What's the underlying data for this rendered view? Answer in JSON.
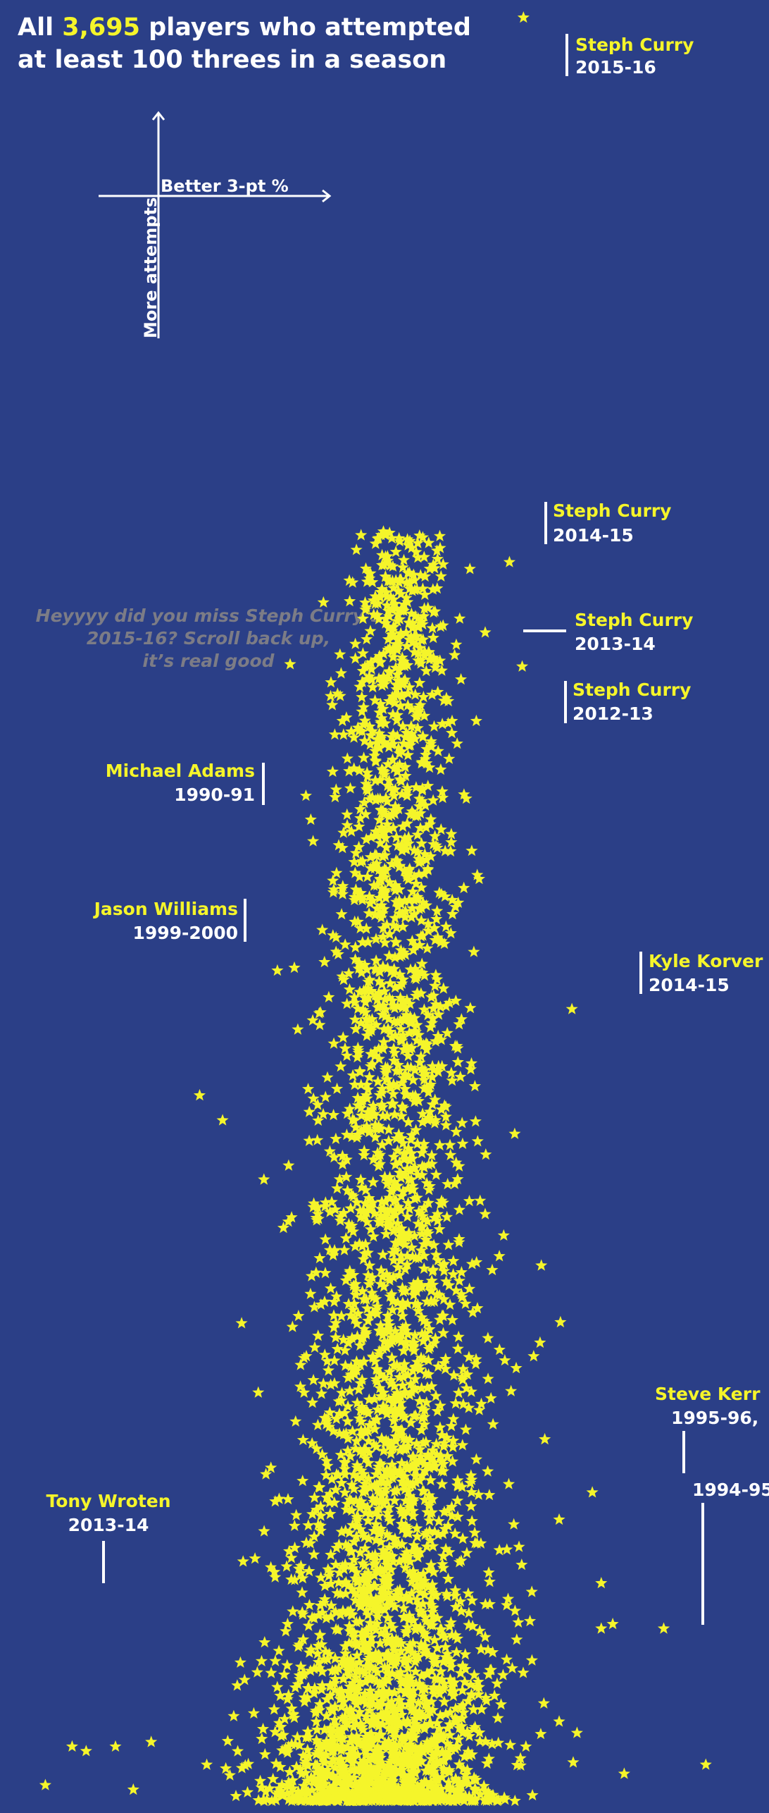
{
  "title": {
    "prefix": "All ",
    "count": "3,695",
    "line1_suffix": " players who attempted",
    "line2": "at least 100 threes in a season"
  },
  "legend": {
    "x_direction": "Better 3-pt %",
    "y_direction": "More attempts"
  },
  "note": {
    "line1": "Heyyyy did you miss Steph Curry’s",
    "line2": "2015-16? Scroll back up,",
    "line3": "it’s real good"
  },
  "colors": {
    "background": "#2b3f87",
    "marker": "#f5f52a",
    "text": "#ffffff",
    "note": "#7c7c86"
  },
  "annotations": [
    {
      "name": "Steph Curry",
      "season": "2015-16"
    },
    {
      "name": "Steph Curry",
      "season": "2014-15"
    },
    {
      "name": "Steph Curry",
      "season": "2013-14"
    },
    {
      "name": "Steph Curry",
      "season": "2012-13"
    },
    {
      "name": "Michael Adams",
      "season": "1990-91"
    },
    {
      "name": "Jason Williams",
      "season": "1999-2000"
    },
    {
      "name": "Kyle Korver",
      "season": "2014-15"
    },
    {
      "name": "Steve Kerr",
      "season": "1995-96,"
    },
    {
      "name": "",
      "season": "1994-95"
    },
    {
      "name": "Tony Wroten",
      "season": "2013-14"
    }
  ],
  "chart_data": {
    "type": "scatter",
    "marker": "star",
    "xlabel": "Better 3-pt %",
    "ylabel": "More attempts",
    "total_points": 3695,
    "x_domain": [
      0.06,
      0.63
    ],
    "y_domain": [
      100,
      886
    ],
    "highlighted": [
      {
        "label": "Steph Curry 2015-16",
        "x": 0.454,
        "y": 886
      },
      {
        "label": "Steph Curry 2014-15",
        "x": 0.443,
        "y": 646
      },
      {
        "label": "Steph Curry 2013-14",
        "x": 0.424,
        "y": 615
      },
      {
        "label": "Steph Curry 2012-13",
        "x": 0.453,
        "y": 600
      },
      {
        "label": "Michael Adams 1990-91",
        "x": 0.356,
        "y": 564
      },
      {
        "label": "Jason Williams 1999-2000",
        "x": 0.341,
        "y": 498
      },
      {
        "label": "Kyle Korver 2014-15",
        "x": 0.492,
        "y": 449
      },
      {
        "label": "Steve Kerr 1995-96",
        "x": 0.515,
        "y": 196
      },
      {
        "label": "Steve Kerr 1994-95",
        "x": 0.524,
        "y": 178
      },
      {
        "label": "Tony Wroten 2013-14",
        "x": 0.269,
        "y": 178
      }
    ],
    "sampled_points": [
      {
        "x": 0.363,
        "y": 656
      },
      {
        "x": 0.334,
        "y": 641
      },
      {
        "x": 0.391,
        "y": 645
      },
      {
        "x": 0.412,
        "y": 643
      },
      {
        "x": 0.32,
        "y": 637
      },
      {
        "x": 0.33,
        "y": 625
      },
      {
        "x": 0.346,
        "y": 621
      },
      {
        "x": 0.355,
        "y": 620
      },
      {
        "x": 0.331,
        "y": 612
      },
      {
        "x": 0.367,
        "y": 617
      },
      {
        "x": 0.348,
        "y": 612
      },
      {
        "x": 0.4,
        "y": 605
      },
      {
        "x": 0.271,
        "y": 601
      },
      {
        "x": 0.328,
        "y": 598
      },
      {
        "x": 0.311,
        "y": 597
      },
      {
        "x": 0.303,
        "y": 593
      },
      {
        "x": 0.304,
        "y": 583
      },
      {
        "x": 0.312,
        "y": 576
      },
      {
        "x": 0.398,
        "y": 576
      },
      {
        "x": 0.306,
        "y": 570
      },
      {
        "x": 0.36,
        "y": 566
      },
      {
        "x": 0.395,
        "y": 575
      },
      {
        "x": 0.417,
        "y": 576
      },
      {
        "x": 0.402,
        "y": 566
      },
      {
        "x": 0.289,
        "y": 523
      },
      {
        "x": 0.312,
        "y": 520
      },
      {
        "x": 0.346,
        "y": 498
      },
      {
        "x": 0.313,
        "y": 462
      },
      {
        "x": 0.277,
        "y": 440
      },
      {
        "x": 0.261,
        "y": 466
      },
      {
        "x": 0.2,
        "y": 411
      },
      {
        "x": 0.218,
        "y": 400
      },
      {
        "x": 0.246,
        "y": 280
      },
      {
        "x": 0.232,
        "y": 161
      },
      {
        "x": 0.1,
        "y": 124
      },
      {
        "x": 0.079,
        "y": 107
      },
      {
        "x": 0.111,
        "y": 122
      },
      {
        "x": 0.134,
        "y": 124
      },
      {
        "x": 0.148,
        "y": 105
      },
      {
        "x": 0.162,
        "y": 126
      },
      {
        "x": 0.482,
        "y": 135
      },
      {
        "x": 0.47,
        "y": 143
      },
      {
        "x": 0.496,
        "y": 130
      },
      {
        "x": 0.533,
        "y": 112
      },
      {
        "x": 0.597,
        "y": 116
      },
      {
        "x": 0.467,
        "y": 302
      },
      {
        "x": 0.468,
        "y": 336
      },
      {
        "x": 0.462,
        "y": 296
      },
      {
        "x": 0.483,
        "y": 311
      },
      {
        "x": 0.508,
        "y": 236
      },
      {
        "x": 0.482,
        "y": 224
      },
      {
        "x": 0.515,
        "y": 176
      },
      {
        "x": 0.564,
        "y": 176
      },
      {
        "x": 0.493,
        "y": 117
      }
    ]
  }
}
